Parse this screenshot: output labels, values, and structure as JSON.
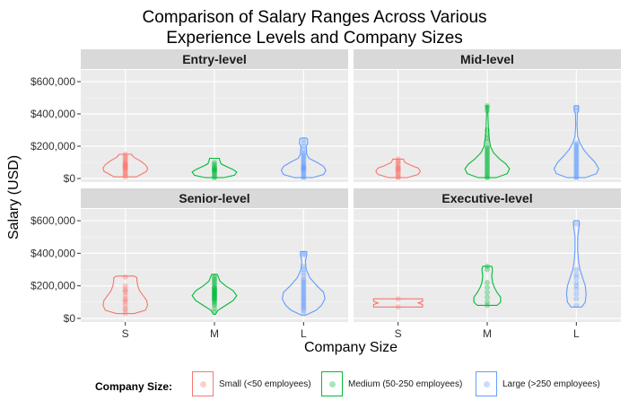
{
  "chart_data": {
    "type": "violin",
    "title_lines": [
      "Comparison of Salary Ranges Across Various",
      "Experience Levels and Company Sizes"
    ],
    "xlabel": "Company Size",
    "ylabel": "Salary (USD)",
    "categories": [
      "S",
      "M",
      "L"
    ],
    "ylim": [
      0,
      650000
    ],
    "y_ticks": [
      0,
      200000,
      400000,
      600000
    ],
    "y_tick_labels": [
      "$0",
      "$200,000",
      "$400,000",
      "$600,000"
    ],
    "grid": true,
    "legend": {
      "title": "Company Size:",
      "position": "bottom",
      "items": [
        {
          "key": "S",
          "label": "Small (<50 employees)",
          "color": "#F8766D"
        },
        {
          "key": "M",
          "label": "Medium (50-250 employees)",
          "color": "#00BA38"
        },
        {
          "key": "L",
          "label": "Large (>250 employees)",
          "color": "#619CFF"
        }
      ]
    },
    "panels": [
      {
        "title": "Entry-level",
        "violins": [
          {
            "category": "S",
            "min": 10000,
            "max": 150000,
            "profile": [
              [
                10000,
                0.25
              ],
              [
                25000,
                0.35
              ],
              [
                45000,
                0.48
              ],
              [
                65000,
                0.5
              ],
              [
                85000,
                0.45
              ],
              [
                100000,
                0.38
              ],
              [
                115000,
                0.3
              ],
              [
                130000,
                0.2
              ],
              [
                145000,
                0.15
              ],
              [
                150000,
                0.14
              ]
            ],
            "points": [
              10000,
              20000,
              25000,
              35000,
              45000,
              55000,
              60000,
              65000,
              70000,
              75000,
              80000,
              85000,
              90000,
              95000,
              100000,
              110000,
              120000,
              130000,
              140000,
              150000
            ]
          },
          {
            "category": "M",
            "min": 5000,
            "max": 125000,
            "profile": [
              [
                5000,
                0.2
              ],
              [
                20000,
                0.45
              ],
              [
                40000,
                0.5
              ],
              [
                55000,
                0.42
              ],
              [
                70000,
                0.3
              ],
              [
                90000,
                0.15
              ],
              [
                110000,
                0.12
              ],
              [
                125000,
                0.11
              ]
            ],
            "points": [
              5000,
              10000,
              20000,
              30000,
              40000,
              45000,
              50000,
              55000,
              60000,
              65000,
              70000,
              80000,
              90000,
              100000
            ]
          },
          {
            "category": "L",
            "min": 5000,
            "max": 250000,
            "profile": [
              [
                5000,
                0.2
              ],
              [
                25000,
                0.45
              ],
              [
                50000,
                0.5
              ],
              [
                75000,
                0.45
              ],
              [
                100000,
                0.3
              ],
              [
                125000,
                0.12
              ],
              [
                150000,
                0.07
              ],
              [
                200000,
                0.06
              ],
              [
                215000,
                0.09
              ],
              [
                240000,
                0.09
              ],
              [
                250000,
                0.07
              ]
            ],
            "points": [
              5000,
              10000,
              20000,
              30000,
              40000,
              50000,
              55000,
              60000,
              65000,
              70000,
              75000,
              80000,
              90000,
              100000,
              110000,
              120000,
              130000,
              140000,
              150000,
              160000,
              180000,
              200000,
              220000,
              240000
            ]
          }
        ]
      },
      {
        "title": "Mid-level",
        "violins": [
          {
            "category": "S",
            "min": 5000,
            "max": 120000,
            "profile": [
              [
                5000,
                0.2
              ],
              [
                25000,
                0.45
              ],
              [
                45000,
                0.5
              ],
              [
                65000,
                0.45
              ],
              [
                80000,
                0.3
              ],
              [
                100000,
                0.15
              ],
              [
                120000,
                0.12
              ]
            ],
            "points": [
              5000,
              10000,
              20000,
              30000,
              40000,
              50000,
              55000,
              60000,
              65000,
              70000,
              80000,
              90000,
              100000,
              110000,
              120000
            ]
          },
          {
            "category": "M",
            "min": 5000,
            "max": 450000,
            "profile": [
              [
                5000,
                0.2
              ],
              [
                30000,
                0.45
              ],
              [
                60000,
                0.5
              ],
              [
                90000,
                0.42
              ],
              [
                120000,
                0.28
              ],
              [
                160000,
                0.14
              ],
              [
                200000,
                0.07
              ],
              [
                260000,
                0.04
              ],
              [
                320000,
                0.025
              ],
              [
                400000,
                0.015
              ],
              [
                440000,
                0.02
              ],
              [
                450000,
                0.015
              ]
            ],
            "points": [
              5000,
              10000,
              20000,
              30000,
              40000,
              50000,
              60000,
              70000,
              80000,
              90000,
              100000,
              110000,
              120000,
              130000,
              140000,
              150000,
              160000,
              170000,
              180000,
              190000,
              200000,
              230000,
              250000,
              270000,
              300000,
              420000,
              440000,
              450000
            ]
          },
          {
            "category": "L",
            "min": 5000,
            "max": 450000,
            "profile": [
              [
                5000,
                0.2
              ],
              [
                30000,
                0.45
              ],
              [
                60000,
                0.5
              ],
              [
                100000,
                0.42
              ],
              [
                140000,
                0.28
              ],
              [
                180000,
                0.16
              ],
              [
                220000,
                0.08
              ],
              [
                260000,
                0.03
              ],
              [
                330000,
                0.015
              ],
              [
                400000,
                0.02
              ],
              [
                420000,
                0.05
              ],
              [
                450000,
                0.05
              ]
            ],
            "points": [
              5000,
              10000,
              20000,
              30000,
              40000,
              50000,
              60000,
              70000,
              80000,
              90000,
              100000,
              110000,
              120000,
              130000,
              140000,
              150000,
              160000,
              170000,
              180000,
              190000,
              200000,
              210000,
              220000,
              420000,
              440000
            ]
          }
        ]
      },
      {
        "title": "Senior-level",
        "violins": [
          {
            "category": "S",
            "min": 30000,
            "max": 260000,
            "profile": [
              [
                30000,
                0.2
              ],
              [
                50000,
                0.45
              ],
              [
                80000,
                0.5
              ],
              [
                110000,
                0.48
              ],
              [
                140000,
                0.4
              ],
              [
                170000,
                0.32
              ],
              [
                200000,
                0.28
              ],
              [
                230000,
                0.26
              ],
              [
                250000,
                0.26
              ],
              [
                260000,
                0.2
              ]
            ],
            "points": [
              30000,
              50000,
              60000,
              80000,
              100000,
              110000,
              120000,
              140000,
              160000,
              170000,
              180000,
              200000,
              255000
            ]
          },
          {
            "category": "M",
            "min": 25000,
            "max": 270000,
            "profile": [
              [
                25000,
                0.02
              ],
              [
                50000,
                0.08
              ],
              [
                80000,
                0.25
              ],
              [
                110000,
                0.42
              ],
              [
                140000,
                0.5
              ],
              [
                170000,
                0.42
              ],
              [
                200000,
                0.25
              ],
              [
                230000,
                0.12
              ],
              [
                260000,
                0.08
              ],
              [
                270000,
                0.06
              ]
            ],
            "points": [
              40000,
              60000,
              80000,
              90000,
              100000,
              110000,
              115000,
              120000,
              125000,
              130000,
              135000,
              140000,
              145000,
              150000,
              155000,
              160000,
              165000,
              170000,
              175000,
              180000,
              185000,
              190000,
              200000,
              210000,
              220000,
              230000,
              240000,
              250000,
              260000
            ]
          },
          {
            "category": "L",
            "min": 20000,
            "max": 410000,
            "profile": [
              [
                20000,
                0.05
              ],
              [
                50000,
                0.28
              ],
              [
                80000,
                0.4
              ],
              [
                120000,
                0.48
              ],
              [
                160000,
                0.45
              ],
              [
                200000,
                0.3
              ],
              [
                250000,
                0.14
              ],
              [
                300000,
                0.06
              ],
              [
                350000,
                0.04
              ],
              [
                390000,
                0.07
              ],
              [
                410000,
                0.07
              ]
            ],
            "points": [
              30000,
              50000,
              60000,
              70000,
              80000,
              90000,
              100000,
              110000,
              120000,
              130000,
              140000,
              150000,
              160000,
              170000,
              180000,
              190000,
              200000,
              210000,
              220000,
              230000,
              240000,
              260000,
              280000,
              300000,
              320000,
              390000,
              400000
            ]
          }
        ]
      },
      {
        "title": "Executive-level",
        "violins": [
          {
            "category": "S",
            "min": 70000,
            "max": 120000,
            "profile": [
              [
                70000,
                0.55
              ],
              [
                85000,
                0.55
              ],
              [
                95000,
                0.45
              ],
              [
                105000,
                0.55
              ],
              [
                120000,
                0.55
              ]
            ],
            "points": [
              70000,
              120000
            ]
          },
          {
            "category": "M",
            "min": 80000,
            "max": 320000,
            "profile": [
              [
                80000,
                0.22
              ],
              [
                100000,
                0.3
              ],
              [
                130000,
                0.3
              ],
              [
                160000,
                0.22
              ],
              [
                190000,
                0.16
              ],
              [
                220000,
                0.12
              ],
              [
                260000,
                0.1
              ],
              [
                300000,
                0.12
              ],
              [
                320000,
                0.1
              ]
            ],
            "points": [
              80000,
              100000,
              130000,
              160000,
              190000,
              220000,
              300000,
              320000
            ]
          },
          {
            "category": "L",
            "min": 70000,
            "max": 600000,
            "profile": [
              [
                70000,
                0.12
              ],
              [
                100000,
                0.2
              ],
              [
                150000,
                0.22
              ],
              [
                200000,
                0.2
              ],
              [
                250000,
                0.14
              ],
              [
                300000,
                0.08
              ],
              [
                350000,
                0.05
              ],
              [
                420000,
                0.03
              ],
              [
                500000,
                0.03
              ],
              [
                560000,
                0.06
              ],
              [
                590000,
                0.07
              ],
              [
                600000,
                0.05
              ]
            ],
            "points": [
              80000,
              120000,
              150000,
              180000,
              200000,
              220000,
              250000,
              270000,
              300000,
              580000
            ]
          }
        ]
      }
    ]
  }
}
